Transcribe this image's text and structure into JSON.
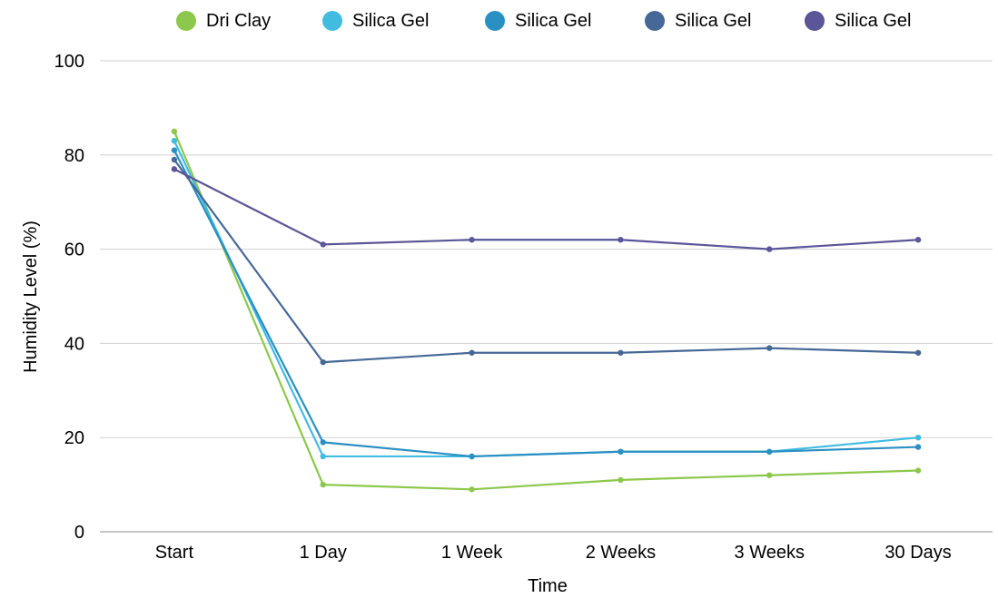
{
  "chart_data": {
    "type": "line",
    "title": "",
    "xlabel": "Time",
    "ylabel": "Humidity Level (%)",
    "categories": [
      "Start",
      "1 Day",
      "1 Week",
      "2 Weeks",
      "3 Weeks",
      "30 Days"
    ],
    "ylim": [
      0,
      100
    ],
    "yticks": [
      0,
      20,
      40,
      60,
      80,
      100
    ],
    "grid": true,
    "legend_position": "top",
    "series": [
      {
        "name": "Dri Clay",
        "color": "#8cc84b",
        "values": [
          85,
          10,
          9,
          11,
          12,
          13
        ]
      },
      {
        "name": "Silica Gel",
        "color": "#41bbe0",
        "values": [
          83,
          16,
          16,
          17,
          17,
          20
        ]
      },
      {
        "name": "Silica Gel",
        "color": "#2a8fc3",
        "values": [
          81,
          19,
          16,
          17,
          17,
          18
        ]
      },
      {
        "name": "Silica Gel",
        "color": "#466896",
        "values": [
          79,
          36,
          38,
          38,
          39,
          38
        ]
      },
      {
        "name": "Silica Gel",
        "color": "#5a5697",
        "values": [
          77,
          61,
          62,
          62,
          60,
          62
        ]
      }
    ]
  }
}
